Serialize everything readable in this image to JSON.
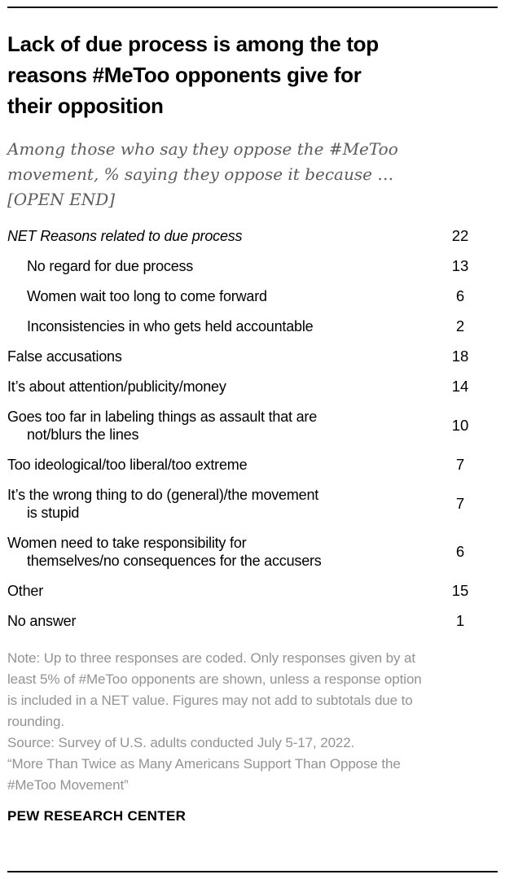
{
  "header": {
    "title": "Lack of due process is among the top\nreasons #MeToo opponents give for\ntheir opposition",
    "subtitle": "Among those who say they oppose the #MeToo\nmovement, % saying they oppose it because …\n[OPEN END]"
  },
  "table": {
    "rows": [
      {
        "label": "NET Reasons related to due process",
        "value": "22",
        "style": "net"
      },
      {
        "label": "No regard for due process",
        "value": "13",
        "style": "sub"
      },
      {
        "label": "Women wait too long to come forward",
        "value": "6",
        "style": "sub"
      },
      {
        "label": "Inconsistencies in who gets held accountable",
        "value": "2",
        "style": "sub"
      },
      {
        "label": "False accusations",
        "value": "18",
        "style": "main"
      },
      {
        "label": "It’s about attention/publicity/money",
        "value": "14",
        "style": "main"
      },
      {
        "label": "Goes too far in labeling things as assault that are\nnot/blurs the lines",
        "value": "10",
        "style": "main"
      },
      {
        "label": "Too ideological/too liberal/too extreme",
        "value": "7",
        "style": "main"
      },
      {
        "label": "It’s the wrong thing to do (general)/the movement\nis stupid",
        "value": "7",
        "style": "main"
      },
      {
        "label": "Women need to take responsibility for\nthemselves/no consequences for the accusers",
        "value": "6",
        "style": "main"
      },
      {
        "label": "Other",
        "value": "15",
        "style": "main gap"
      },
      {
        "label": "No answer",
        "value": "1",
        "style": "main"
      }
    ]
  },
  "footer": {
    "note": "Note: Up to three responses are coded. Only responses given by at\nleast 5% of #MeToo opponents are shown, unless a response option\nis included in a NET value. Figures may not add to subtotals due to\nrounding.",
    "source": "Source: Survey of U.S. adults conducted July 5-17, 2022.",
    "report": "“More Than Twice as Many Americans Support Than Oppose the\n#MeToo Movement”",
    "brand": "PEW RESEARCH CENTER"
  },
  "colors": {
    "text": "#000000",
    "subtitle_gray": "#5c5c5f",
    "note_gray": "#939393",
    "rule": "#111111"
  },
  "chart_data": {
    "type": "table",
    "title": "Lack of due process is among the top reasons #MeToo opponents give for their opposition",
    "subtitle": "Among those who say they oppose the #MeToo movement, % saying they oppose it because … [OPEN END]",
    "unit": "percent",
    "rows": [
      {
        "label": "NET Reasons related to due process",
        "value": 22,
        "level": "net"
      },
      {
        "label": "No regard for due process",
        "value": 13,
        "level": "sub"
      },
      {
        "label": "Women wait too long to come forward",
        "value": 6,
        "level": "sub"
      },
      {
        "label": "Inconsistencies in who gets held accountable",
        "value": 2,
        "level": "sub"
      },
      {
        "label": "False accusations",
        "value": 18,
        "level": "main"
      },
      {
        "label": "It’s about attention/publicity/money",
        "value": 14,
        "level": "main"
      },
      {
        "label": "Goes too far in labeling things as assault that are not/blurs the lines",
        "value": 10,
        "level": "main"
      },
      {
        "label": "Too ideological/too liberal/too extreme",
        "value": 7,
        "level": "main"
      },
      {
        "label": "It’s the wrong thing to do (general)/the movement is stupid",
        "value": 7,
        "level": "main"
      },
      {
        "label": "Women need to take responsibility for themselves/no consequences for the accusers",
        "value": 6,
        "level": "main"
      },
      {
        "label": "Other",
        "value": 15,
        "level": "main"
      },
      {
        "label": "No answer",
        "value": 1,
        "level": "main"
      }
    ],
    "note": "Note: Up to three responses are coded. Only responses given by at least 5% of #MeToo opponents are shown, unless a response option is included in a NET value. Figures may not add to subtotals due to rounding.",
    "source": "Source: Survey of U.S. adults conducted July 5-17, 2022.",
    "report": "“More Than Twice as Many Americans Support Than Oppose the #MeToo Movement”"
  }
}
